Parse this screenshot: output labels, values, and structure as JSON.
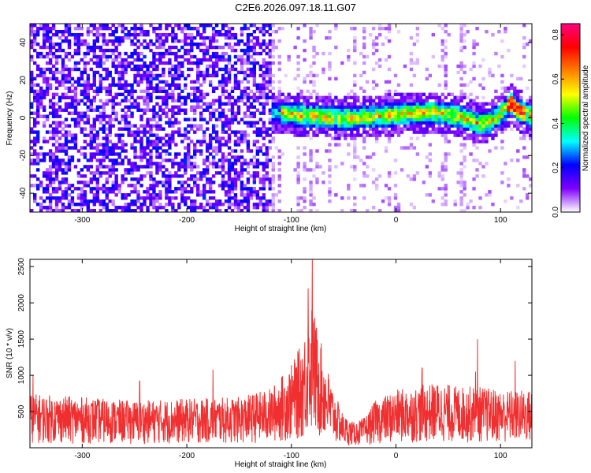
{
  "title": "C2E6.2026.097.18.11.G07",
  "colorbar": {
    "label": "Normalized spectral amplitude",
    "range": [
      0.0,
      0.85
    ],
    "ticks": [
      "0.0",
      "0.2",
      "0.4",
      "0.6",
      "0.8"
    ],
    "tick_values": [
      0.0,
      0.2,
      0.4,
      0.6,
      0.8
    ],
    "colors": [
      "#ffffff",
      "#7f00ff",
      "#0000ff",
      "#00ffff",
      "#00ff00",
      "#ffff00",
      "#ff8000",
      "#ff0000",
      "#ff0080"
    ]
  },
  "chart_data": [
    {
      "type": "heatmap",
      "xlabel": "Height of straight line (km)",
      "ylabel": "Frequency (Hz)",
      "xlim": [
        -350,
        130
      ],
      "ylim": [
        -50,
        50
      ],
      "x_ticks": [
        -300,
        -200,
        -100,
        0,
        100
      ],
      "x_tick_labels": [
        "-300",
        "-200",
        "-100",
        "0",
        "100"
      ],
      "y_ticks": [
        -40,
        -20,
        0,
        20,
        40
      ],
      "y_tick_labels": [
        "-40",
        "-20",
        "0",
        "20",
        "40"
      ],
      "ridge": {
        "x": [
          -120,
          -100,
          -80,
          -60,
          -40,
          -20,
          0,
          20,
          40,
          60,
          80,
          90,
          100,
          110,
          120,
          130
        ],
        "y": [
          3,
          2,
          1,
          0,
          0,
          1,
          2,
          3,
          3,
          1,
          -3,
          -2,
          2,
          8,
          3,
          1
        ]
      },
      "noise_region_x": [
        -350,
        -120
      ]
    },
    {
      "type": "line",
      "xlabel": "Height of straight line (km)",
      "ylabel": "SNR (10 * v/v)",
      "xlim": [
        -350,
        130
      ],
      "ylim": [
        0,
        2600
      ],
      "x_ticks": [
        -300,
        -200,
        -100,
        0,
        100
      ],
      "x_tick_labels": [
        "-300",
        "-200",
        "-100",
        "0",
        "100"
      ],
      "y_ticks": [
        500,
        1000,
        1500,
        2000,
        2500
      ],
      "y_tick_labels": [
        "500",
        "1000",
        "1500",
        "2000",
        "2500"
      ],
      "color": "#f03030",
      "envelope": {
        "x": [
          -350,
          -300,
          -250,
          -200,
          -150,
          -120,
          -100,
          -90,
          -80,
          -70,
          -60,
          -50,
          -40,
          -30,
          -20,
          0,
          20,
          40,
          60,
          80,
          100,
          130
        ],
        "y": [
          750,
          700,
          650,
          680,
          700,
          820,
          1150,
          1450,
          2000,
          1350,
          800,
          450,
          350,
          420,
          650,
          800,
          850,
          900,
          850,
          850,
          800,
          800
        ]
      },
      "peaks": [
        {
          "x": -347,
          "y": 1000
        },
        {
          "x": -245,
          "y": 920
        },
        {
          "x": -175,
          "y": 1080
        },
        {
          "x": -84,
          "y": 2200
        },
        {
          "x": -80,
          "y": 2600
        },
        {
          "x": -76,
          "y": 1650
        },
        {
          "x": 25,
          "y": 1100
        },
        {
          "x": 76,
          "y": 1050
        },
        {
          "x": 78,
          "y": 1500
        },
        {
          "x": 114,
          "y": 1200
        }
      ]
    }
  ]
}
